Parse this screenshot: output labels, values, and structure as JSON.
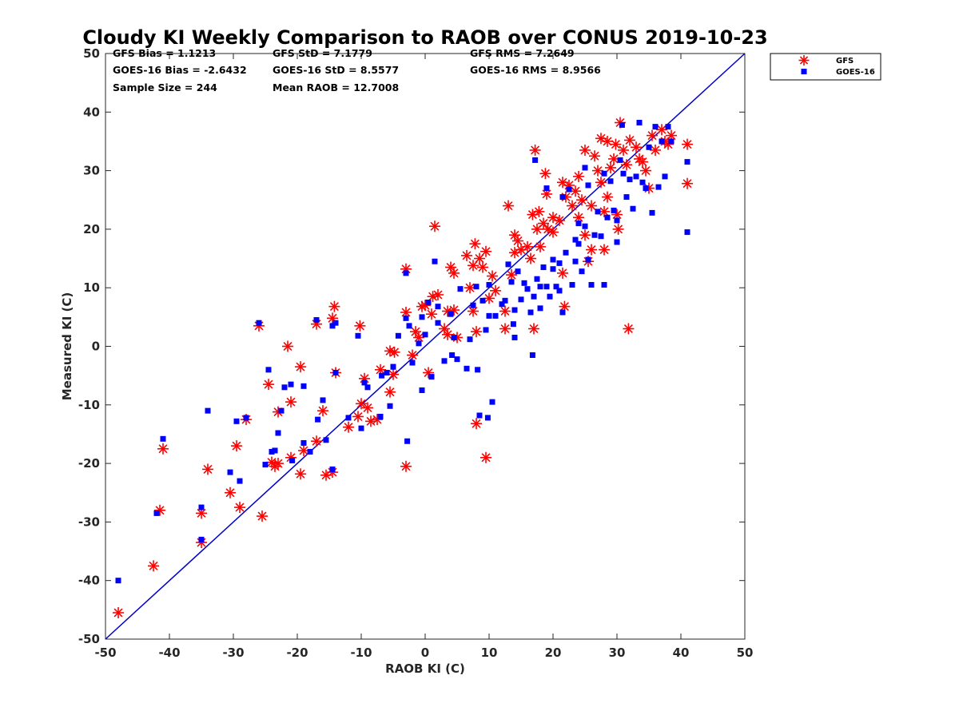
{
  "chart_data": {
    "type": "scatter",
    "title": "Cloudy KI Weekly Comparison to RAOB over CONUS 2019-10-23",
    "xlabel": "RAOB KI (C)",
    "ylabel": "Measured KI (C)",
    "xlim": [
      -50,
      50
    ],
    "ylim": [
      -50,
      50
    ],
    "xticks": [
      "-50",
      "-40",
      "-30",
      "-20",
      "-10",
      "0",
      "10",
      "20",
      "30",
      "40",
      "50"
    ],
    "yticks": [
      "-50",
      "-40",
      "-30",
      "-20",
      "-10",
      "0",
      "10",
      "20",
      "30",
      "40",
      "50"
    ],
    "grid": false,
    "legend_position": "outside-top-right",
    "reference_line": {
      "from": [
        -50,
        -50
      ],
      "to": [
        50,
        50
      ],
      "color": "#0000cc"
    },
    "stats": [
      [
        "GFS Bias = 1.1213",
        "GFS StD = 7.1779",
        "GFS RMS = 7.2649"
      ],
      [
        "GOES-16 Bias = -2.6432",
        "GOES-16 StD = 8.5577",
        "GOES-16 RMS = 8.9566"
      ],
      [
        "Sample Size = 244",
        "Mean RAOB = 12.7008",
        ""
      ]
    ],
    "series": [
      {
        "name": "GFS",
        "marker": "asterisk",
        "color": "#ff0000",
        "points": [
          [
            -48,
            -45.5
          ],
          [
            -42.5,
            -37.5
          ],
          [
            -41.5,
            -28
          ],
          [
            -41,
            -17.5
          ],
          [
            -35,
            -33.5
          ],
          [
            -35,
            -28.5
          ],
          [
            -34,
            -21
          ],
          [
            -30.5,
            -25
          ],
          [
            -29.5,
            -17
          ],
          [
            -29,
            -27.5
          ],
          [
            -28,
            -12.5
          ],
          [
            -26,
            3.5
          ],
          [
            -25.5,
            -29
          ],
          [
            -24.5,
            -6.5
          ],
          [
            -24,
            -19.8
          ],
          [
            -23.5,
            -20.5
          ],
          [
            -23,
            -11.2
          ],
          [
            -23,
            -20
          ],
          [
            -21.5,
            0
          ],
          [
            -21,
            -9.5
          ],
          [
            -21,
            -19
          ],
          [
            -19.5,
            -21.8
          ],
          [
            -19.5,
            -3.5
          ],
          [
            -19,
            -17.8
          ],
          [
            -17,
            -16.2
          ],
          [
            -17,
            3.8
          ],
          [
            -16,
            -11
          ],
          [
            -15.5,
            -22
          ],
          [
            -14.5,
            -21.5
          ],
          [
            -14.5,
            4.8
          ],
          [
            -14.2,
            6.8
          ],
          [
            -14,
            -4.5
          ],
          [
            -12,
            -13.8
          ],
          [
            -10.5,
            -12
          ],
          [
            -10.2,
            3.5
          ],
          [
            -10,
            -9.8
          ],
          [
            -9.5,
            -5.5
          ],
          [
            -9,
            -10.5
          ],
          [
            -8.5,
            -12.8
          ],
          [
            -7.5,
            -12.5
          ],
          [
            -7,
            -4
          ],
          [
            -5.5,
            -7.8
          ],
          [
            -5.5,
            -0.8
          ],
          [
            -5,
            -4.8
          ],
          [
            -4.8,
            -1
          ],
          [
            -3,
            13.2
          ],
          [
            -3,
            5.8
          ],
          [
            -3,
            -20.5
          ],
          [
            -2,
            -1.5
          ],
          [
            -1.5,
            2.5
          ],
          [
            -1,
            1.5
          ],
          [
            -0.5,
            6.8
          ],
          [
            0,
            7
          ],
          [
            0.5,
            -4.5
          ],
          [
            1,
            5.5
          ],
          [
            1.2,
            8.5
          ],
          [
            1.5,
            20.5
          ],
          [
            2,
            8.8
          ],
          [
            3,
            3
          ],
          [
            3.5,
            2
          ],
          [
            3.5,
            6
          ],
          [
            4,
            13.5
          ],
          [
            4.5,
            12.5
          ],
          [
            4.5,
            6.2
          ],
          [
            5,
            1.5
          ],
          [
            6.5,
            15.5
          ],
          [
            7,
            10
          ],
          [
            7.5,
            6
          ],
          [
            7.5,
            13.8
          ],
          [
            7.8,
            17.5
          ],
          [
            8,
            2.5
          ],
          [
            8,
            -13.2
          ],
          [
            8.5,
            15
          ],
          [
            9,
            13.5
          ],
          [
            9.5,
            16.2
          ],
          [
            9.5,
            -19
          ],
          [
            10,
            8.2
          ],
          [
            10.5,
            12
          ],
          [
            11,
            9.5
          ],
          [
            12.5,
            6
          ],
          [
            12.5,
            3
          ],
          [
            13,
            24
          ],
          [
            13.5,
            12.2
          ],
          [
            14,
            19
          ],
          [
            14,
            16
          ],
          [
            14.5,
            18
          ],
          [
            15,
            16.5
          ],
          [
            16,
            17
          ],
          [
            16.5,
            15
          ],
          [
            16.8,
            22.5
          ],
          [
            17,
            3
          ],
          [
            17.2,
            33.5
          ],
          [
            17.5,
            20
          ],
          [
            17.8,
            23
          ],
          [
            18,
            17
          ],
          [
            18.5,
            21
          ],
          [
            18.8,
            29.5
          ],
          [
            19,
            26
          ],
          [
            19.2,
            20
          ],
          [
            20,
            22
          ],
          [
            20,
            19.5
          ],
          [
            21,
            21.5
          ],
          [
            21.5,
            28
          ],
          [
            21.5,
            12.5
          ],
          [
            21.8,
            6.8
          ],
          [
            22,
            25.5
          ],
          [
            22.5,
            27.5
          ],
          [
            23,
            24
          ],
          [
            23.5,
            26.5
          ],
          [
            24,
            29
          ],
          [
            24,
            22
          ],
          [
            24.5,
            25
          ],
          [
            25,
            33.5
          ],
          [
            25,
            19
          ],
          [
            25.5,
            14.5
          ],
          [
            26,
            16.5
          ],
          [
            26,
            24
          ],
          [
            26.5,
            32.5
          ],
          [
            27,
            30
          ],
          [
            27.5,
            35.5
          ],
          [
            27.5,
            28
          ],
          [
            28,
            23
          ],
          [
            28,
            16.5
          ],
          [
            28.5,
            35
          ],
          [
            28.5,
            25.5
          ],
          [
            29,
            30.5
          ],
          [
            29.5,
            32
          ],
          [
            29.8,
            34.5
          ],
          [
            30,
            22.5
          ],
          [
            30.2,
            20
          ],
          [
            30.5,
            38.2
          ],
          [
            31,
            33.5
          ],
          [
            31.5,
            31
          ],
          [
            31.8,
            3
          ],
          [
            32,
            35.2
          ],
          [
            33,
            34
          ],
          [
            33.5,
            32
          ],
          [
            34,
            31.5
          ],
          [
            34.5,
            30
          ],
          [
            35,
            27
          ],
          [
            35.5,
            36
          ],
          [
            36,
            33.5
          ],
          [
            37,
            37
          ],
          [
            37.5,
            35
          ],
          [
            38,
            34.5
          ],
          [
            38.5,
            36
          ],
          [
            41,
            34.5
          ],
          [
            41,
            27.8
          ]
        ]
      },
      {
        "name": "GOES-16",
        "marker": "square",
        "color": "#0000ff",
        "points": [
          [
            -48,
            -40
          ],
          [
            -42,
            -28.5
          ],
          [
            -41,
            -15.8
          ],
          [
            -35,
            -27.5
          ],
          [
            -35,
            -33
          ],
          [
            -34,
            -11
          ],
          [
            -30.5,
            -21.5
          ],
          [
            -29.5,
            -12.8
          ],
          [
            -29,
            -23
          ],
          [
            -28,
            -12.2
          ],
          [
            -26,
            4
          ],
          [
            -25,
            -20.2
          ],
          [
            -24.5,
            -4
          ],
          [
            -24,
            -18
          ],
          [
            -23.5,
            -17.8
          ],
          [
            -23,
            -14.8
          ],
          [
            -22.5,
            -11
          ],
          [
            -22,
            -7
          ],
          [
            -21,
            -6.5
          ],
          [
            -20.8,
            -19.5
          ],
          [
            -19,
            -6.8
          ],
          [
            -19,
            -16.5
          ],
          [
            -18,
            -18
          ],
          [
            -17,
            4.5
          ],
          [
            -16.8,
            -12.5
          ],
          [
            -16,
            -9.2
          ],
          [
            -15.5,
            -16
          ],
          [
            -14.5,
            -21
          ],
          [
            -14.5,
            3.5
          ],
          [
            -14,
            4
          ],
          [
            -14,
            -4.5
          ],
          [
            -12,
            -12.2
          ],
          [
            -10.5,
            1.8
          ],
          [
            -10,
            -14
          ],
          [
            -9.5,
            -6.2
          ],
          [
            -9,
            -7
          ],
          [
            -7,
            -12
          ],
          [
            -6.8,
            -5
          ],
          [
            -6,
            -4.5
          ],
          [
            -5.5,
            -10.2
          ],
          [
            -5,
            -3.5
          ],
          [
            -5,
            -3.5
          ],
          [
            -4.2,
            1.8
          ],
          [
            -3,
            12.5
          ],
          [
            -3,
            4.8
          ],
          [
            -2.8,
            -16.2
          ],
          [
            -2.5,
            3.5
          ],
          [
            -2,
            -2.8
          ],
          [
            -1,
            0.5
          ],
          [
            -0.5,
            5
          ],
          [
            -0.5,
            -7.5
          ],
          [
            0,
            2
          ],
          [
            0.5,
            7.5
          ],
          [
            1,
            -5.2
          ],
          [
            1.5,
            14.5
          ],
          [
            2,
            6.8
          ],
          [
            2,
            4
          ],
          [
            3,
            -2.5
          ],
          [
            4,
            5.5
          ],
          [
            4.2,
            -1.5
          ],
          [
            4.5,
            1.5
          ],
          [
            5,
            -2.2
          ],
          [
            5.5,
            9.8
          ],
          [
            6.5,
            -3.8
          ],
          [
            7,
            1.2
          ],
          [
            7.5,
            7
          ],
          [
            8,
            10.2
          ],
          [
            8.2,
            -4
          ],
          [
            8.5,
            -11.8
          ],
          [
            9,
            7.8
          ],
          [
            9.5,
            2.8
          ],
          [
            9.8,
            -12.2
          ],
          [
            10,
            10.5
          ],
          [
            10,
            5.2
          ],
          [
            10.5,
            -9.5
          ],
          [
            11,
            5.2
          ],
          [
            12,
            7.2
          ],
          [
            12.5,
            7.8
          ],
          [
            13,
            14
          ],
          [
            13.5,
            11
          ],
          [
            13.8,
            3.8
          ],
          [
            14,
            1.5
          ],
          [
            14,
            6.2
          ],
          [
            14.5,
            12.8
          ],
          [
            15,
            8
          ],
          [
            15.5,
            10.8
          ],
          [
            16,
            9.8
          ],
          [
            16.5,
            5.8
          ],
          [
            16.8,
            -1.5
          ],
          [
            17,
            8.5
          ],
          [
            17.2,
            31.8
          ],
          [
            17.5,
            11.5
          ],
          [
            18,
            6.5
          ],
          [
            18,
            10.2
          ],
          [
            18.5,
            13.5
          ],
          [
            19,
            27
          ],
          [
            19,
            10.2
          ],
          [
            19.5,
            8.5
          ],
          [
            20,
            14.8
          ],
          [
            20,
            13.2
          ],
          [
            20.5,
            10.2
          ],
          [
            21,
            14.2
          ],
          [
            21,
            9.5
          ],
          [
            21.5,
            5.8
          ],
          [
            21.5,
            25.5
          ],
          [
            22,
            16
          ],
          [
            22.5,
            26.8
          ],
          [
            23,
            10.5
          ],
          [
            23.5,
            18.2
          ],
          [
            23.5,
            14.5
          ],
          [
            24,
            21
          ],
          [
            24,
            17.5
          ],
          [
            24.5,
            12.8
          ],
          [
            25,
            30.5
          ],
          [
            25,
            20.5
          ],
          [
            25.5,
            14.8
          ],
          [
            25.5,
            27.5
          ],
          [
            26,
            10.5
          ],
          [
            26.5,
            19
          ],
          [
            27,
            23
          ],
          [
            27.5,
            18.8
          ],
          [
            28,
            10.5
          ],
          [
            28,
            29.5
          ],
          [
            28.5,
            22
          ],
          [
            29,
            28.2
          ],
          [
            29.5,
            23.2
          ],
          [
            30,
            21.5
          ],
          [
            30,
            17.8
          ],
          [
            30.5,
            31.8
          ],
          [
            30.8,
            37.8
          ],
          [
            31,
            29.5
          ],
          [
            31.5,
            25.5
          ],
          [
            32,
            28.5
          ],
          [
            32.5,
            23.5
          ],
          [
            33,
            29
          ],
          [
            33.5,
            38.2
          ],
          [
            34,
            28
          ],
          [
            34.5,
            27
          ],
          [
            35,
            34
          ],
          [
            35.5,
            22.8
          ],
          [
            36,
            37.5
          ],
          [
            36.5,
            27.2
          ],
          [
            37,
            35
          ],
          [
            37.5,
            29
          ],
          [
            38,
            37.5
          ],
          [
            38.5,
            35
          ],
          [
            41,
            31.5
          ],
          [
            41,
            19.5
          ]
        ]
      }
    ]
  }
}
